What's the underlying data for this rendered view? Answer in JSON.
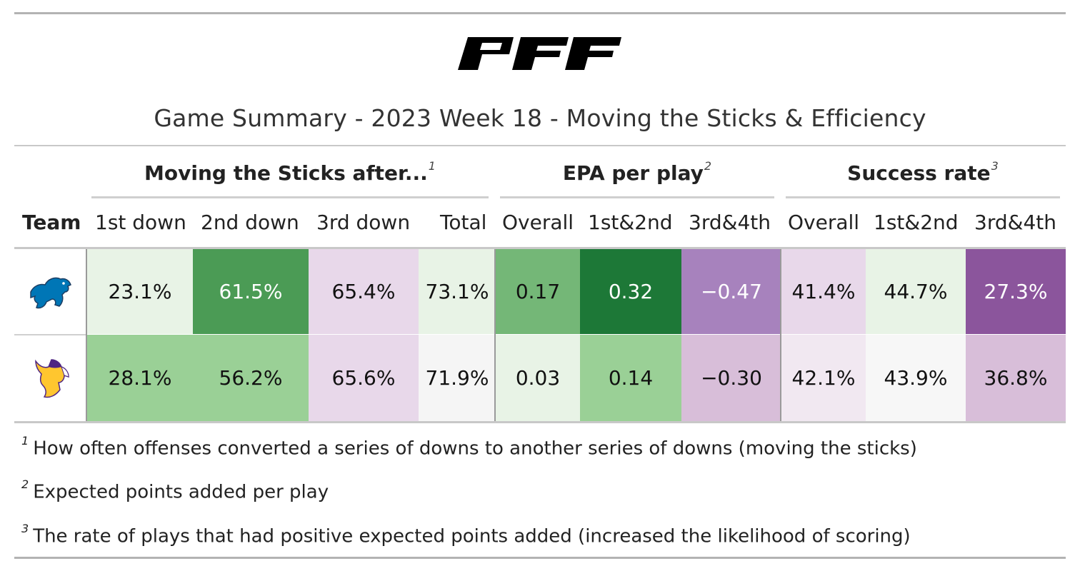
{
  "logo_text": "PFF",
  "title": "Game Summary - 2023 Week 18 - Moving the Sticks & Efficiency",
  "spanners": [
    {
      "label": "Moving the Sticks after...",
      "note": "1"
    },
    {
      "label": "EPA per play",
      "note": "2"
    },
    {
      "label": "Success rate",
      "note": "3"
    }
  ],
  "columns": [
    "Team",
    "1st down",
    "2nd down",
    "3rd down",
    "Total",
    "Overall",
    "1st&2nd",
    "3rd&4th",
    "Overall",
    "1st&2nd",
    "3rd&4th"
  ],
  "teams": [
    {
      "icon": "lions-logo-icon",
      "color": "#0076B6"
    },
    {
      "icon": "vikings-logo-icon",
      "color": "#4F2683"
    }
  ],
  "footnotes": [
    {
      "mark": "1",
      "text": "How often offenses converted a series of downs to another series of downs (moving the sticks)"
    },
    {
      "mark": "2",
      "text": "Expected points added per play"
    },
    {
      "mark": "3",
      "text": "The rate of plays that had positive expected points added (increased the likelihood of scoring)"
    }
  ],
  "chart_data": {
    "type": "table",
    "title": "Game Summary - 2023 Week 18 - Moving the Sticks & Efficiency",
    "column_groups": [
      {
        "label": "Moving the Sticks after...",
        "columns": [
          "1st down",
          "2nd down",
          "3rd down",
          "Total"
        ]
      },
      {
        "label": "EPA per play",
        "columns": [
          "Overall",
          "1st&2nd",
          "3rd&4th"
        ]
      },
      {
        "label": "Success rate",
        "columns": [
          "Overall",
          "1st&2nd",
          "3rd&4th"
        ]
      }
    ],
    "rows": [
      {
        "team_icon": "lions-logo-icon",
        "cells": [
          {
            "text": "23.1%",
            "value": 23.1,
            "bg": "#e8f3e6",
            "light": false
          },
          {
            "text": "61.5%",
            "value": 61.5,
            "bg": "#4b9b55",
            "light": true
          },
          {
            "text": "65.4%",
            "value": 65.4,
            "bg": "#e8d8ea",
            "light": false
          },
          {
            "text": "73.1%",
            "value": 73.1,
            "bg": "#e8f3e6",
            "light": false
          },
          {
            "text": "0.17",
            "value": 0.17,
            "bg": "#74b777",
            "light": false
          },
          {
            "text": "0.32",
            "value": 0.32,
            "bg": "#1d7837",
            "light": true
          },
          {
            "text": "−0.47",
            "value": -0.47,
            "bg": "#a782bd",
            "light": true
          },
          {
            "text": "41.4%",
            "value": 41.4,
            "bg": "#e8d8ea",
            "light": false
          },
          {
            "text": "44.7%",
            "value": 44.7,
            "bg": "#e8f3e6",
            "light": false
          },
          {
            "text": "27.3%",
            "value": 27.3,
            "bg": "#8b559c",
            "light": true
          }
        ]
      },
      {
        "team_icon": "vikings-logo-icon",
        "cells": [
          {
            "text": "28.1%",
            "value": 28.1,
            "bg": "#9ad096",
            "light": false
          },
          {
            "text": "56.2%",
            "value": 56.2,
            "bg": "#9ad096",
            "light": false
          },
          {
            "text": "65.6%",
            "value": 65.6,
            "bg": "#e8d8ea",
            "light": false
          },
          {
            "text": "71.9%",
            "value": 71.9,
            "bg": "#f5f5f5",
            "light": false
          },
          {
            "text": "0.03",
            "value": 0.03,
            "bg": "#e8f3e6",
            "light": false
          },
          {
            "text": "0.14",
            "value": 0.14,
            "bg": "#9ad096",
            "light": false
          },
          {
            "text": "−0.30",
            "value": -0.3,
            "bg": "#d8bed9",
            "light": false
          },
          {
            "text": "42.1%",
            "value": 42.1,
            "bg": "#f1e8f1",
            "light": false
          },
          {
            "text": "43.9%",
            "value": 43.9,
            "bg": "#f7f7f7",
            "light": false
          },
          {
            "text": "36.8%",
            "value": 36.8,
            "bg": "#d8bed9",
            "light": false
          }
        ]
      }
    ]
  }
}
